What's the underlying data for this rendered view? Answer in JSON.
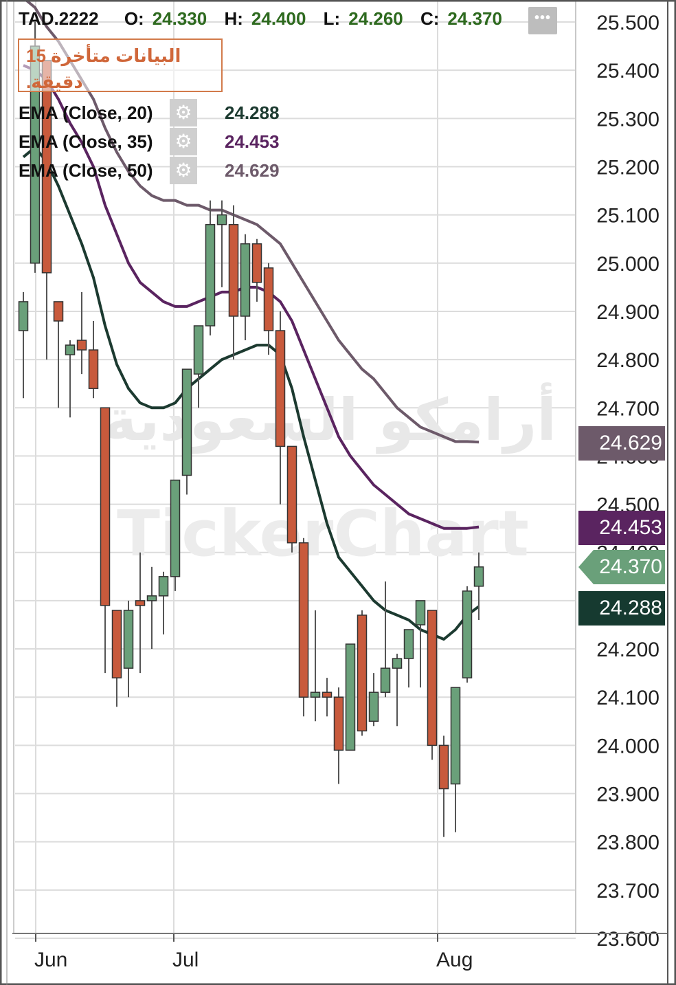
{
  "header": {
    "symbol": "TAD.2222",
    "open_label": "O:",
    "open": "24.330",
    "high_label": "H:",
    "high": "24.400",
    "low_label": "L:",
    "low": "24.260",
    "close_label": "C:",
    "close": "24.370",
    "menu_icon": "more-dots-icon"
  },
  "notice": {
    "text": "البيانات متأخرة 15 دقيقة."
  },
  "watermark": {
    "arabic": "أرامكو السعودية",
    "english": "TickerChart"
  },
  "indicators": [
    {
      "label": "EMA  (Close, 20)",
      "value": "24.288",
      "color": "#1c3a30",
      "icon": "gear-icon"
    },
    {
      "label": "EMA  (Close, 35)",
      "value": "24.453",
      "color": "#5a2460",
      "icon": "gear-icon"
    },
    {
      "label": "EMA  (Close, 50)",
      "value": "24.629",
      "color": "#6d5a6a",
      "icon": "gear-icon"
    }
  ],
  "badges": [
    {
      "value": "24.629",
      "bg": "#6d5a6a"
    },
    {
      "value": "24.453",
      "bg": "#5a2460"
    },
    {
      "value": "24.370",
      "bg": "#6aa07a"
    },
    {
      "value": "24.288",
      "bg": "#163a30"
    }
  ],
  "chart_data": {
    "type": "candlestick",
    "x_ticks": [
      "Jun",
      "Jul",
      "Aug"
    ],
    "y_ticks": [
      "25.500",
      "25.400",
      "25.300",
      "25.200",
      "25.100",
      "25.000",
      "24.900",
      "24.800",
      "24.700",
      "24.600",
      "24.500",
      "24.400",
      "24.300",
      "24.200",
      "24.100",
      "24.000",
      "23.900",
      "23.800",
      "23.700",
      "23.600"
    ],
    "ylim": [
      23.6,
      25.5
    ],
    "grid": true,
    "colors": {
      "up": "#6aa07a",
      "down": "#c85a3c",
      "grid": "#dcdcdc"
    },
    "candles": [
      {
        "o": 24.86,
        "h": 24.94,
        "l": 24.72,
        "c": 24.92
      },
      {
        "o": 25.0,
        "h": 25.5,
        "l": 24.98,
        "c": 25.45
      },
      {
        "o": 25.42,
        "h": 25.42,
        "l": 24.8,
        "c": 24.98
      },
      {
        "o": 24.92,
        "h": 24.92,
        "l": 24.7,
        "c": 24.88
      },
      {
        "o": 24.81,
        "h": 24.84,
        "l": 24.68,
        "c": 24.83
      },
      {
        "o": 24.84,
        "h": 24.94,
        "l": 24.77,
        "c": 24.82
      },
      {
        "o": 24.82,
        "h": 24.88,
        "l": 24.72,
        "c": 24.74
      },
      {
        "o": 24.7,
        "h": 24.7,
        "l": 24.15,
        "c": 24.29
      },
      {
        "o": 24.28,
        "h": 24.28,
        "l": 24.08,
        "c": 24.14
      },
      {
        "o": 24.16,
        "h": 24.3,
        "l": 24.1,
        "c": 24.28
      },
      {
        "o": 24.3,
        "h": 24.4,
        "l": 24.15,
        "c": 24.29
      },
      {
        "o": 24.3,
        "h": 24.37,
        "l": 24.2,
        "c": 24.31
      },
      {
        "o": 24.31,
        "h": 24.36,
        "l": 24.23,
        "c": 24.35
      },
      {
        "o": 24.35,
        "h": 24.55,
        "l": 24.32,
        "c": 24.55
      },
      {
        "o": 24.56,
        "h": 24.78,
        "l": 24.52,
        "c": 24.78
      },
      {
        "o": 24.77,
        "h": 24.87,
        "l": 24.7,
        "c": 24.87
      },
      {
        "o": 24.87,
        "h": 25.13,
        "l": 24.85,
        "c": 25.08
      },
      {
        "o": 25.08,
        "h": 25.13,
        "l": 24.95,
        "c": 25.1
      },
      {
        "o": 25.08,
        "h": 25.12,
        "l": 24.8,
        "c": 24.89
      },
      {
        "o": 24.89,
        "h": 25.06,
        "l": 24.84,
        "c": 25.04
      },
      {
        "o": 25.04,
        "h": 25.05,
        "l": 24.92,
        "c": 24.96
      },
      {
        "o": 24.99,
        "h": 25.0,
        "l": 24.81,
        "c": 24.86
      },
      {
        "o": 24.86,
        "h": 24.9,
        "l": 24.5,
        "c": 24.62
      },
      {
        "o": 24.62,
        "h": 24.62,
        "l": 24.4,
        "c": 24.42
      },
      {
        "o": 24.42,
        "h": 24.43,
        "l": 24.06,
        "c": 24.1
      },
      {
        "o": 24.1,
        "h": 24.28,
        "l": 24.05,
        "c": 24.11
      },
      {
        "o": 24.11,
        "h": 24.14,
        "l": 24.06,
        "c": 24.1
      },
      {
        "o": 24.1,
        "h": 24.12,
        "l": 23.92,
        "c": 23.99
      },
      {
        "o": 23.99,
        "h": 24.21,
        "l": 23.99,
        "c": 24.21
      },
      {
        "o": 24.27,
        "h": 24.28,
        "l": 24.02,
        "c": 24.03
      },
      {
        "o": 24.05,
        "h": 24.15,
        "l": 24.04,
        "c": 24.11
      },
      {
        "o": 24.11,
        "h": 24.34,
        "l": 24.1,
        "c": 24.16
      },
      {
        "o": 24.16,
        "h": 24.19,
        "l": 24.04,
        "c": 24.18
      },
      {
        "o": 24.18,
        "h": 24.24,
        "l": 24.12,
        "c": 24.24
      },
      {
        "o": 24.25,
        "h": 24.3,
        "l": 24.12,
        "c": 24.3
      },
      {
        "o": 24.28,
        "h": 24.28,
        "l": 23.97,
        "c": 24.0
      },
      {
        "o": 24.0,
        "h": 24.02,
        "l": 23.81,
        "c": 23.91
      },
      {
        "o": 23.92,
        "h": 24.12,
        "l": 23.82,
        "c": 24.12
      },
      {
        "o": 24.14,
        "h": 24.33,
        "l": 24.13,
        "c": 24.32
      },
      {
        "o": 24.33,
        "h": 24.4,
        "l": 24.26,
        "c": 24.37
      }
    ],
    "ema_series": [
      {
        "period": 20,
        "color": "#1c3a30",
        "values": [
          25.22,
          25.24,
          25.21,
          25.16,
          25.1,
          25.04,
          24.97,
          24.87,
          24.79,
          24.74,
          24.71,
          24.7,
          24.7,
          24.71,
          24.74,
          24.76,
          24.78,
          24.8,
          24.81,
          24.82,
          24.83,
          24.83,
          24.81,
          24.74,
          24.64,
          24.55,
          24.46,
          24.39,
          24.36,
          24.33,
          24.3,
          24.28,
          24.27,
          24.26,
          24.24,
          24.23,
          24.22,
          24.24,
          24.27,
          24.288
        ]
      },
      {
        "period": 35,
        "color": "#5a2460",
        "values": [
          25.41,
          25.4,
          25.38,
          25.34,
          25.29,
          25.25,
          25.2,
          25.12,
          25.06,
          25.0,
          24.96,
          24.94,
          24.92,
          24.91,
          24.91,
          24.92,
          24.93,
          24.94,
          24.94,
          24.95,
          24.95,
          24.94,
          24.92,
          24.88,
          24.82,
          24.76,
          24.7,
          24.64,
          24.6,
          24.57,
          24.54,
          24.52,
          24.5,
          24.48,
          24.47,
          24.46,
          24.45,
          24.45,
          24.45,
          24.453
        ]
      },
      {
        "period": 50,
        "color": "#6d5a6a",
        "values": [
          25.55,
          25.53,
          25.49,
          25.46,
          25.42,
          25.38,
          25.34,
          25.28,
          25.23,
          25.19,
          25.16,
          25.14,
          25.13,
          25.13,
          25.12,
          25.12,
          25.11,
          25.11,
          25.1,
          25.09,
          25.08,
          25.06,
          25.04,
          25.0,
          24.96,
          24.92,
          24.88,
          24.84,
          24.81,
          24.78,
          24.76,
          24.73,
          24.7,
          24.68,
          24.66,
          24.65,
          24.64,
          24.63,
          24.63,
          24.629
        ]
      }
    ]
  }
}
